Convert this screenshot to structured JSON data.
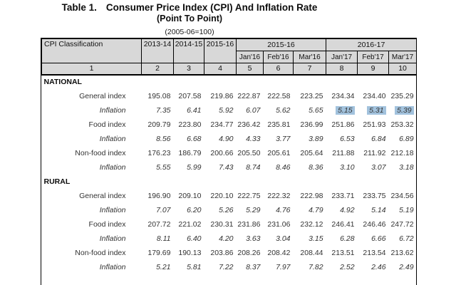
{
  "title": {
    "prefix": "Table 1.",
    "main": "Consumer Price Index (CPI) And Inflation Rate",
    "subtitle": "(Point To Point)",
    "base_note": "(2005-06=100)"
  },
  "table": {
    "corner_header": "CPI Classification",
    "year_columns": [
      "2013-14",
      "2014-15",
      "2015-16"
    ],
    "group_headers": [
      {
        "label": "2015-16",
        "months": [
          "Jan'16",
          "Feb'16",
          "Mar'16"
        ]
      },
      {
        "label": "2016-17",
        "months": [
          "Jan'17",
          "Feb'17",
          "Mar'17"
        ]
      }
    ],
    "column_numbers": [
      "1",
      "2",
      "3",
      "4",
      "5",
      "6",
      "7",
      "8",
      "9",
      "10"
    ],
    "header_bg": "#d8d8d8",
    "highlight_color": "#a2c2dd",
    "sections": [
      {
        "name": "NATIONAL",
        "rows": [
          {
            "label": "General index",
            "style": "index",
            "values": [
              "195.08",
              "207.58",
              "219.86",
              "222.87",
              "222.58",
              "223.25",
              "234.34",
              "234.40",
              "235.29"
            ]
          },
          {
            "label": "Inflation",
            "style": "inflation",
            "highlight": [
              6,
              7,
              8
            ],
            "values": [
              "7.35",
              "6.41",
              "5.92",
              "6.07",
              "5.62",
              "5.65",
              "5.15",
              "5.31",
              "5.39"
            ]
          },
          {
            "label": "Food index",
            "style": "index",
            "values": [
              "209.79",
              "223.80",
              "234.77",
              "236.42",
              "235.81",
              "236.99",
              "251.86",
              "251.93",
              "253.32"
            ]
          },
          {
            "label": "Inflation",
            "style": "inflation",
            "values": [
              "8.56",
              "6.68",
              "4.90",
              "4.33",
              "3.77",
              "3.89",
              "6.53",
              "6.84",
              "6.89"
            ]
          },
          {
            "label": "Non-food index",
            "style": "index",
            "values": [
              "176.23",
              "186.79",
              "200.66",
              "205.50",
              "205.61",
              "205.64",
              "211.88",
              "211.92",
              "212.18"
            ]
          },
          {
            "label": "Inflation",
            "style": "inflation",
            "values": [
              "5.55",
              "5.99",
              "7.43",
              "8.74",
              "8.46",
              "8.36",
              "3.10",
              "3.07",
              "3.18"
            ]
          }
        ]
      },
      {
        "name": "RURAL",
        "rows": [
          {
            "label": "General index",
            "style": "index",
            "values": [
              "196.90",
              "209.10",
              "220.10",
              "222.75",
              "222.32",
              "222.98",
              "233.71",
              "233.75",
              "234.56"
            ]
          },
          {
            "label": "Inflation",
            "style": "inflation",
            "values": [
              "7.07",
              "6.20",
              "5.26",
              "5.29",
              "4.76",
              "4.79",
              "4.92",
              "5.14",
              "5.19"
            ]
          },
          {
            "label": "Food index",
            "style": "index",
            "values": [
              "207.72",
              "221.02",
              "230.31",
              "231.86",
              "231.06",
              "232.12",
              "246.41",
              "246.46",
              "247.72"
            ]
          },
          {
            "label": "Inflation",
            "style": "inflation",
            "values": [
              "8.11",
              "6.40",
              "4.20",
              "3.63",
              "3.04",
              "3.15",
              "6.28",
              "6.66",
              "6.72"
            ]
          },
          {
            "label": "Non-food index",
            "style": "index",
            "values": [
              "179.69",
              "190.13",
              "203.86",
              "208.26",
              "208.42",
              "208.44",
              "213.51",
              "213.54",
              "213.62"
            ]
          },
          {
            "label": "Inflation",
            "style": "inflation",
            "values": [
              "5.21",
              "5.81",
              "7.22",
              "8.37",
              "7.97",
              "7.82",
              "2.52",
              "2.46",
              "2.49"
            ]
          }
        ]
      }
    ]
  }
}
